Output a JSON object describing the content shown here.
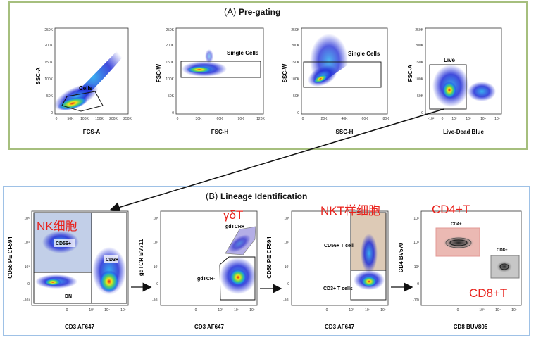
{
  "panel_a": {
    "title_prefix": "(A)",
    "title": "Pre-gating",
    "plots": [
      {
        "y_label": "SSC-A",
        "x_label": "FCS-A",
        "gate_label": "Cells",
        "x_ticks": [
          "0",
          "50K",
          "100K",
          "150K",
          "200K",
          "250K"
        ],
        "y_ticks": [
          "0",
          "50K",
          "100K",
          "150K",
          "200K",
          "250K"
        ]
      },
      {
        "y_label": "FSC-W",
        "x_label": "FSC-H",
        "gate_label": "Single Cells",
        "x_ticks": [
          "0",
          "30K",
          "60K",
          "90K",
          "120K"
        ],
        "y_ticks": [
          "0",
          "50K",
          "100K",
          "150K",
          "200K",
          "250K"
        ]
      },
      {
        "y_label": "SSC-W",
        "x_label": "SSC-H",
        "gate_label": "Single Cells",
        "x_ticks": [
          "0",
          "20K",
          "40K",
          "60K",
          "80K"
        ],
        "y_ticks": [
          "0",
          "50K",
          "100K",
          "150K",
          "200K",
          "250K"
        ]
      },
      {
        "y_label": "FSC-A",
        "x_label": "Live-Dead Blue",
        "gate_label": "Live",
        "x_ticks": [
          "-10²",
          "0",
          "10²",
          "10³",
          "10⁴",
          "10⁵"
        ],
        "y_ticks": [
          "0",
          "50K",
          "100K",
          "150K",
          "200K",
          "250K"
        ]
      }
    ]
  },
  "panel_b": {
    "title_prefix": "(B)",
    "title": "Lineage Identification",
    "log_x_ticks": [
      "0",
      "10³",
      "10⁴",
      "10⁵"
    ],
    "log_y_ticks": [
      "-10³",
      "0",
      "10³",
      "10⁴",
      "10⁵"
    ],
    "plots": [
      {
        "y_label": "CD56 PE CF594",
        "x_label": "CD3 AF647",
        "gate_labels": [
          "CD56+",
          "CD3+",
          "DN"
        ],
        "annotation": "NK细胞"
      },
      {
        "y_label": "gdTCR BV711",
        "x_label": "CD3 AF647",
        "gate_labels": [
          "gdTCR+",
          "gdTCR-"
        ],
        "annotation": "γδT"
      },
      {
        "y_label": "CD56 PE CF594",
        "x_label": "CD3 AF647",
        "gate_labels": [
          "CD56+ T cell",
          "CD3+ T cells"
        ],
        "annotation": "NKT样细胞"
      },
      {
        "y_label": "CD4 BV570",
        "x_label": "CD8 BUV805",
        "gate_labels": [
          "CD4+",
          "CD8+"
        ],
        "annotations": [
          "CD4+T",
          "CD8+T"
        ]
      }
    ]
  },
  "colors": {
    "panel_a_border": "#a6bf7e",
    "panel_b_border": "#9ec1e6",
    "annotation_red": "#e8221c",
    "density_low": "#1f2bd6",
    "density_high": "#e2231a"
  }
}
